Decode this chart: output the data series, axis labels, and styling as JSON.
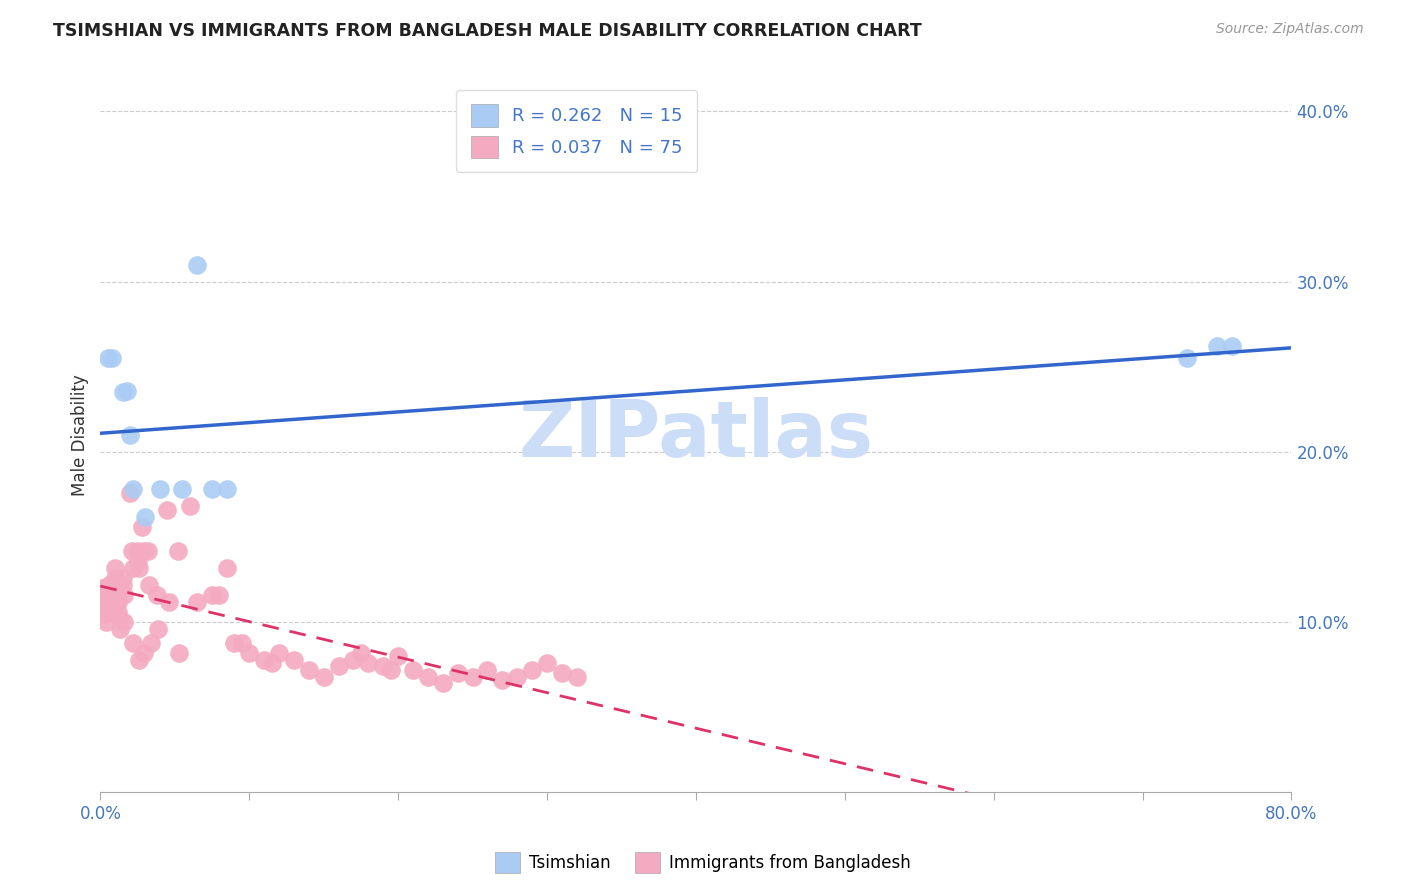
{
  "title": "TSIMSHIAN VS IMMIGRANTS FROM BANGLADESH MALE DISABILITY CORRELATION CHART",
  "source": "Source: ZipAtlas.com",
  "ylabel": "Male Disability",
  "xlim": [
    0.0,
    0.8
  ],
  "ylim": [
    0.0,
    0.42
  ],
  "xticks": [
    0.0,
    0.1,
    0.2,
    0.3,
    0.4,
    0.5,
    0.6,
    0.7,
    0.8
  ],
  "yticks": [
    0.1,
    0.2,
    0.3,
    0.4
  ],
  "ytick_labels": [
    "10.0%",
    "20.0%",
    "30.0%",
    "40.0%"
  ],
  "tsimshian_R": 0.262,
  "tsimshian_N": 15,
  "bangladesh_R": 0.037,
  "bangladesh_N": 75,
  "tsimshian_color": "#aaccf4",
  "bangladesh_color": "#f4aac0",
  "tsimshian_line_color": "#3366cc",
  "bangladesh_line_color": "#dd3366",
  "watermark": "ZIPatlas",
  "watermark_color": "#ccddf8",
  "tsimshian_x": [
    0.005,
    0.008,
    0.015,
    0.018,
    0.02,
    0.022,
    0.03,
    0.04,
    0.055,
    0.065,
    0.075,
    0.085,
    0.73,
    0.75,
    0.76
  ],
  "tsimshian_y": [
    0.255,
    0.255,
    0.235,
    0.236,
    0.21,
    0.178,
    0.162,
    0.178,
    0.178,
    0.31,
    0.178,
    0.178,
    0.255,
    0.262,
    0.262
  ],
  "bangladesh_x": [
    0.001,
    0.002,
    0.002,
    0.003,
    0.003,
    0.003,
    0.004,
    0.006,
    0.007,
    0.008,
    0.01,
    0.01,
    0.011,
    0.011,
    0.012,
    0.012,
    0.013,
    0.013,
    0.015,
    0.015,
    0.016,
    0.016,
    0.02,
    0.021,
    0.022,
    0.022,
    0.025,
    0.025,
    0.026,
    0.026,
    0.028,
    0.029,
    0.029,
    0.032,
    0.033,
    0.034,
    0.038,
    0.039,
    0.045,
    0.046,
    0.052,
    0.053,
    0.06,
    0.065,
    0.075,
    0.08,
    0.085,
    0.09,
    0.095,
    0.1,
    0.11,
    0.115,
    0.12,
    0.13,
    0.14,
    0.15,
    0.16,
    0.17,
    0.175,
    0.18,
    0.19,
    0.195,
    0.2,
    0.21,
    0.22,
    0.23,
    0.24,
    0.25,
    0.26,
    0.27,
    0.28,
    0.29,
    0.3,
    0.31,
    0.32
  ],
  "bangladesh_y": [
    0.12,
    0.115,
    0.11,
    0.112,
    0.108,
    0.105,
    0.1,
    0.122,
    0.116,
    0.106,
    0.132,
    0.126,
    0.122,
    0.116,
    0.112,
    0.106,
    0.102,
    0.096,
    0.126,
    0.122,
    0.116,
    0.1,
    0.176,
    0.142,
    0.132,
    0.088,
    0.142,
    0.136,
    0.132,
    0.078,
    0.156,
    0.142,
    0.082,
    0.142,
    0.122,
    0.088,
    0.116,
    0.096,
    0.166,
    0.112,
    0.142,
    0.082,
    0.168,
    0.112,
    0.116,
    0.116,
    0.132,
    0.088,
    0.088,
    0.082,
    0.078,
    0.076,
    0.082,
    0.078,
    0.072,
    0.068,
    0.074,
    0.078,
    0.082,
    0.076,
    0.074,
    0.072,
    0.08,
    0.072,
    0.068,
    0.064,
    0.07,
    0.068,
    0.072,
    0.066,
    0.068,
    0.072,
    0.076,
    0.07,
    0.068
  ]
}
